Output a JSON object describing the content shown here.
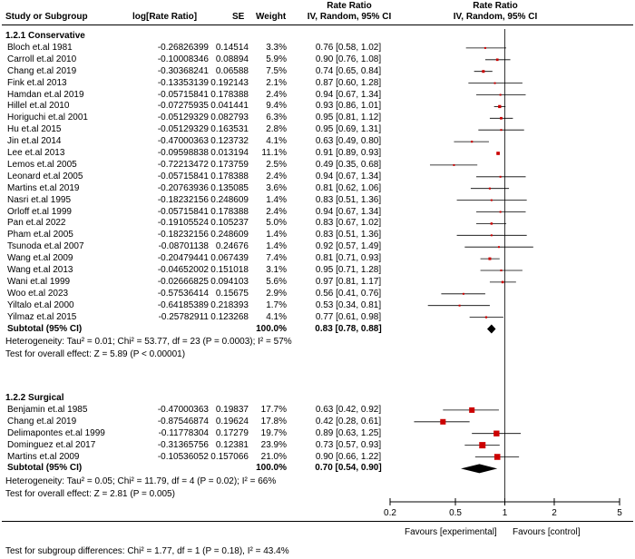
{
  "header": {
    "study": "Study or Subgroup",
    "log": "log[Rate Ratio]",
    "se": "SE",
    "weight": "Weight",
    "rr_title": "Rate Ratio",
    "rr_sub": "IV, Random, 95% CI",
    "plot_title": "Rate Ratio",
    "plot_sub": "IV, Random, 95% CI"
  },
  "groups": [
    {
      "title": "1.2.1 Conservative",
      "studies": [
        {
          "name": "Bloch et.al 1981",
          "log": "-0.26826399",
          "se": "0.14514",
          "weight": "3.3%",
          "ci": "0.76 [0.58, 1.02]",
          "est": 0.76,
          "lo": 0.58,
          "hi": 1.02,
          "w": 3.3
        },
        {
          "name": "Carroll et.al 2010",
          "log": "-0.10008346",
          "se": "0.08894",
          "weight": "5.9%",
          "ci": "0.90 [0.76, 1.08]",
          "est": 0.9,
          "lo": 0.76,
          "hi": 1.08,
          "w": 5.9
        },
        {
          "name": "Chang et.al 2019",
          "log": "-0.30368241",
          "se": "0.06588",
          "weight": "7.5%",
          "ci": "0.74 [0.65, 0.84]",
          "est": 0.74,
          "lo": 0.65,
          "hi": 0.84,
          "w": 7.5
        },
        {
          "name": "Fink et.al 2013",
          "log": "-0.13353139",
          "se": "0.192143",
          "weight": "2.1%",
          "ci": "0.87 [0.60, 1.28]",
          "est": 0.87,
          "lo": 0.6,
          "hi": 1.28,
          "w": 2.1
        },
        {
          "name": "Hamdan et.al 2019",
          "log": "-0.05715841",
          "se": "0.178388",
          "weight": "2.4%",
          "ci": "0.94 [0.67, 1.34]",
          "est": 0.94,
          "lo": 0.67,
          "hi": 1.34,
          "w": 2.4
        },
        {
          "name": "Hillel et.al 2010",
          "log": "-0.07275935",
          "se": "0.041441",
          "weight": "9.4%",
          "ci": "0.93 [0.86, 1.01]",
          "est": 0.93,
          "lo": 0.86,
          "hi": 1.01,
          "w": 9.4
        },
        {
          "name": "Horiguchi et.al 2001",
          "log": "-0.05129329",
          "se": "0.082793",
          "weight": "6.3%",
          "ci": "0.95 [0.81, 1.12]",
          "est": 0.95,
          "lo": 0.81,
          "hi": 1.12,
          "w": 6.3
        },
        {
          "name": "Hu et.al 2015",
          "log": "-0.05129329",
          "se": "0.163531",
          "weight": "2.8%",
          "ci": "0.95 [0.69, 1.31]",
          "est": 0.95,
          "lo": 0.69,
          "hi": 1.31,
          "w": 2.8
        },
        {
          "name": "Jin et.al 2014",
          "log": "-0.47000363",
          "se": "0.123732",
          "weight": "4.1%",
          "ci": "0.63 [0.49, 0.80]",
          "est": 0.63,
          "lo": 0.49,
          "hi": 0.8,
          "w": 4.1
        },
        {
          "name": "Lee et.al 2013",
          "log": "-0.09598838",
          "se": "0.013194",
          "weight": "11.1%",
          "ci": "0.91 [0.89, 0.93]",
          "est": 0.91,
          "lo": 0.89,
          "hi": 0.93,
          "w": 11.1
        },
        {
          "name": "Lemos et.al 2005",
          "log": "-0.72213472",
          "se": "0.173759",
          "weight": "2.5%",
          "ci": "0.49 [0.35, 0.68]",
          "est": 0.49,
          "lo": 0.35,
          "hi": 0.68,
          "w": 2.5
        },
        {
          "name": "Leonard et.al 2005",
          "log": "-0.05715841",
          "se": "0.178388",
          "weight": "2.4%",
          "ci": "0.94 [0.67, 1.34]",
          "est": 0.94,
          "lo": 0.67,
          "hi": 1.34,
          "w": 2.4
        },
        {
          "name": "Martins et.al 2019",
          "log": "-0.20763936",
          "se": "0.135085",
          "weight": "3.6%",
          "ci": "0.81 [0.62, 1.06]",
          "est": 0.81,
          "lo": 0.62,
          "hi": 1.06,
          "w": 3.6
        },
        {
          "name": "Nasri et.al 1995",
          "log": "-0.18232156",
          "se": "0.248609",
          "weight": "1.4%",
          "ci": "0.83 [0.51, 1.36]",
          "est": 0.83,
          "lo": 0.51,
          "hi": 1.36,
          "w": 1.4
        },
        {
          "name": "Orloff et.al 1999",
          "log": "-0.05715841",
          "se": "0.178388",
          "weight": "2.4%",
          "ci": "0.94 [0.67, 1.34]",
          "est": 0.94,
          "lo": 0.67,
          "hi": 1.34,
          "w": 2.4
        },
        {
          "name": "Pan et.al 2022",
          "log": "-0.19105524",
          "se": "0.105237",
          "weight": "5.0%",
          "ci": "0.83 [0.67, 1.02]",
          "est": 0.83,
          "lo": 0.67,
          "hi": 1.02,
          "w": 5.0
        },
        {
          "name": "Pham et.al 2005",
          "log": "-0.18232156",
          "se": "0.248609",
          "weight": "1.4%",
          "ci": "0.83 [0.51, 1.36]",
          "est": 0.83,
          "lo": 0.51,
          "hi": 1.36,
          "w": 1.4
        },
        {
          "name": "Tsunoda et.al 2007",
          "log": "-0.08701138",
          "se": "0.24676",
          "weight": "1.4%",
          "ci": "0.92 [0.57, 1.49]",
          "est": 0.92,
          "lo": 0.57,
          "hi": 1.49,
          "w": 1.4
        },
        {
          "name": "Wang et.al 2009",
          "log": "-0.20479441",
          "se": "0.067439",
          "weight": "7.4%",
          "ci": "0.81 [0.71, 0.93]",
          "est": 0.81,
          "lo": 0.71,
          "hi": 0.93,
          "w": 7.4
        },
        {
          "name": "Wang et.al 2013",
          "log": "-0.04652002",
          "se": "0.151018",
          "weight": "3.1%",
          "ci": "0.95 [0.71, 1.28]",
          "est": 0.95,
          "lo": 0.71,
          "hi": 1.28,
          "w": 3.1
        },
        {
          "name": "Wani et.al 1999",
          "log": "-0.02666825",
          "se": "0.094103",
          "weight": "5.6%",
          "ci": "0.97 [0.81, 1.17]",
          "est": 0.97,
          "lo": 0.81,
          "hi": 1.17,
          "w": 5.6
        },
        {
          "name": "Woo et.al 2023",
          "log": "-0.57536414",
          "se": "0.15675",
          "weight": "2.9%",
          "ci": "0.56 [0.41, 0.76]",
          "est": 0.56,
          "lo": 0.41,
          "hi": 0.76,
          "w": 2.9
        },
        {
          "name": "Yiltalo et.al 2000",
          "log": "-0.64185389",
          "se": "0.218393",
          "weight": "1.7%",
          "ci": "0.53 [0.34, 0.81]",
          "est": 0.53,
          "lo": 0.34,
          "hi": 0.81,
          "w": 1.7
        },
        {
          "name": "Yilmaz et.al 2015",
          "log": "-0.25782911",
          "se": "0.123268",
          "weight": "4.1%",
          "ci": "0.77 [0.61, 0.98]",
          "est": 0.77,
          "lo": 0.61,
          "hi": 0.98,
          "w": 4.1
        }
      ],
      "subtotal": {
        "label": "Subtotal (95% CI)",
        "weight": "100.0%",
        "ci": "0.83 [0.78, 0.88]",
        "est": 0.83,
        "lo": 0.78,
        "hi": 0.88
      },
      "heterogeneity": "Heterogeneity: Tau² = 0.01; Chi² = 53.77, df = 23 (P = 0.0003); I² = 57%",
      "overall": "Test for overall effect: Z = 5.89 (P < 0.00001)"
    },
    {
      "title": "1.2.2 Surgical",
      "studies": [
        {
          "name": "Benjamin et.al 1985",
          "log": "-0.47000363",
          "se": "0.19837",
          "weight": "17.7%",
          "ci": "0.63 [0.42, 0.92]",
          "est": 0.63,
          "lo": 0.42,
          "hi": 0.92,
          "w": 17.7
        },
        {
          "name": "Chang et.al 2019",
          "log": "-0.87546874",
          "se": "0.19624",
          "weight": "17.8%",
          "ci": "0.42 [0.28, 0.61]",
          "est": 0.42,
          "lo": 0.28,
          "hi": 0.61,
          "w": 17.8
        },
        {
          "name": "Delimapontes et.al 1999",
          "log": "-0.11778304",
          "se": "0.17279",
          "weight": "19.7%",
          "ci": "0.89 [0.63, 1.25]",
          "est": 0.89,
          "lo": 0.63,
          "hi": 1.25,
          "w": 19.7
        },
        {
          "name": "Dominguez et.al 2017",
          "log": "-0.31365756",
          "se": "0.12381",
          "weight": "23.9%",
          "ci": "0.73 [0.57, 0.93]",
          "est": 0.73,
          "lo": 0.57,
          "hi": 0.93,
          "w": 23.9
        },
        {
          "name": "Martins et.al 2009",
          "log": "-0.10536052",
          "se": "0.157066",
          "weight": "21.0%",
          "ci": "0.90 [0.66, 1.22]",
          "est": 0.9,
          "lo": 0.66,
          "hi": 1.22,
          "w": 21.0
        }
      ],
      "subtotal": {
        "label": "Subtotal (95% CI)",
        "weight": "100.0%",
        "ci": "0.70 [0.54, 0.90]",
        "est": 0.7,
        "lo": 0.54,
        "hi": 0.9
      },
      "heterogeneity": "Heterogeneity: Tau² = 0.05; Chi² = 11.79, df = 4 (P = 0.02); I² = 66%",
      "overall": "Test for overall effect: Z = 2.81 (P = 0.005)"
    }
  ],
  "subgroup_test": "Test for subgroup differences: Chi² = 1.77, df = 1 (P = 0.18), I² = 43.4%",
  "chart_data": {
    "type": "forest",
    "scale": "log",
    "xlim": [
      0.2,
      5
    ],
    "ticks": [
      {
        "v": 0.2,
        "label": "0.2"
      },
      {
        "v": 0.5,
        "label": "0.5"
      },
      {
        "v": 1,
        "label": "1"
      },
      {
        "v": 2,
        "label": "2"
      },
      {
        "v": 5,
        "label": "5"
      }
    ],
    "favours_left": "Favours [experimental]",
    "favours_right": "Favours [control]",
    "marker_color": "#cc0000",
    "diamond_color": "#000000"
  }
}
